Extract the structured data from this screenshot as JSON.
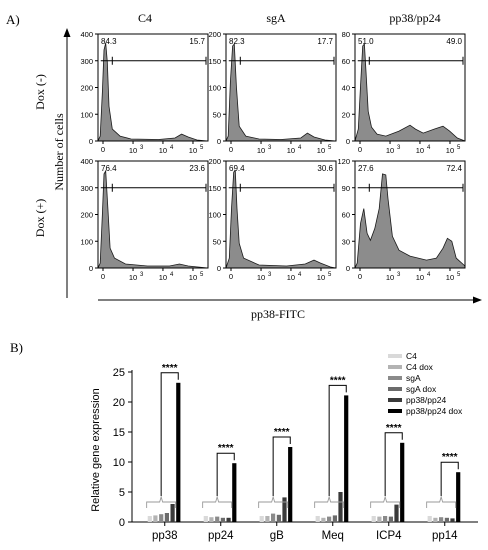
{
  "panel_a": {
    "label": "A)",
    "column_titles": [
      "C4",
      "sgA",
      "pp38/pp24"
    ],
    "row_titles": [
      "Dox (-)",
      "Dox (+)"
    ],
    "ylabel": "Number of cells",
    "xlabel": "pp38-FITC",
    "x_tick_labels": [
      "0",
      "10",
      "3",
      "10",
      "4",
      "10",
      "5"
    ],
    "rows": [
      [
        {
          "name": "C4",
          "dox": "Dox (-)",
          "left_pct": "84.3",
          "right_pct": "15.7",
          "y_ticks": [
            "400",
            "300",
            "200",
            "100",
            "0"
          ],
          "y_max": 400,
          "gate_level": 300
        },
        {
          "name": "sgA",
          "dox": "Dox (-)",
          "left_pct": "82.3",
          "right_pct": "17.7",
          "y_ticks": [
            "200",
            "150",
            "100",
            "50",
            "0"
          ],
          "y_max": 200,
          "gate_level": 150
        },
        {
          "name": "pp38/pp24",
          "dox": "Dox (-)",
          "left_pct": "51.0",
          "right_pct": "49.0",
          "y_ticks": [
            "80",
            "60",
            "40",
            "20",
            "0"
          ],
          "y_max": 80,
          "gate_level": 60
        }
      ],
      [
        {
          "name": "C4",
          "dox": "Dox (+)",
          "left_pct": "76.4",
          "right_pct": "23.6",
          "y_ticks": [
            "400",
            "300",
            "200",
            "100",
            "0"
          ],
          "y_max": 400,
          "gate_level": 300
        },
        {
          "name": "sgA",
          "dox": "Dox (+)",
          "left_pct": "69.4",
          "right_pct": "30.6",
          "y_ticks": [
            "200",
            "150",
            "100",
            "50",
            "0"
          ],
          "y_max": 200,
          "gate_level": 150
        },
        {
          "name": "pp38/pp24",
          "dox": "Dox (+)",
          "left_pct": "27.6",
          "right_pct": "72.4",
          "y_ticks": [
            "120",
            "90",
            "60",
            "30",
            "0"
          ],
          "y_max": 120,
          "gate_level": 90
        }
      ]
    ]
  },
  "chart_data": {
    "type": "bar",
    "panel_label": "B)",
    "categories": [
      "pp38",
      "pp24",
      "gB",
      "Meq",
      "ICP4",
      "pp14"
    ],
    "ylabel": "Relative gene expression",
    "ylim": [
      0,
      25
    ],
    "y_ticks": [
      "0",
      "5",
      "10",
      "15",
      "20",
      "25"
    ],
    "legend_position": "top-right",
    "significance_label": "****",
    "series": [
      {
        "name": "C4",
        "color": "#d9d9d9",
        "values": [
          1.0,
          1.0,
          1.0,
          1.0,
          1.0,
          1.0
        ]
      },
      {
        "name": "C4 dox",
        "color": "#b3b3b3",
        "values": [
          1.1,
          0.8,
          1.0,
          0.7,
          0.9,
          0.7
        ]
      },
      {
        "name": "sgA",
        "color": "#8a8a8a",
        "values": [
          1.3,
          0.9,
          1.4,
          0.9,
          1.0,
          0.8
        ]
      },
      {
        "name": "sgA dox",
        "color": "#6b6b6b",
        "values": [
          1.5,
          0.7,
          1.2,
          1.1,
          0.9,
          0.7
        ]
      },
      {
        "name": "pp38/pp24",
        "color": "#3a3a3a",
        "values": [
          3.0,
          0.7,
          4.1,
          5.0,
          2.9,
          0.6
        ]
      },
      {
        "name": "pp38/pp24 dox",
        "color": "#000000",
        "values": [
          23.2,
          9.8,
          12.5,
          21.1,
          13.2,
          8.3
        ]
      }
    ]
  }
}
